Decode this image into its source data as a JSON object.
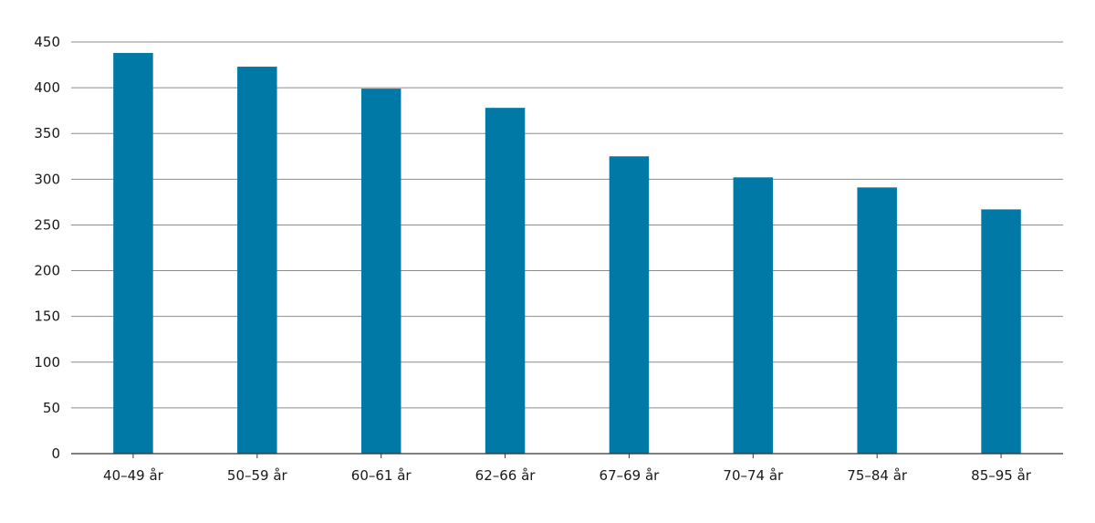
{
  "chart_data": {
    "type": "bar",
    "title": "",
    "xlabel": "",
    "ylabel": "",
    "categories": [
      "40–49 år",
      "50–59 år",
      "60–61 år",
      "62–66 år",
      "67–69 år",
      "70–74 år",
      "75–84 år",
      "85–95 år"
    ],
    "values": [
      438,
      423,
      399,
      378,
      325,
      302,
      291,
      267
    ],
    "ylim": [
      0,
      450
    ],
    "yticks": [
      0,
      50,
      100,
      150,
      200,
      250,
      300,
      350,
      400,
      450
    ],
    "grid": true,
    "legend": "none",
    "colors": {
      "bar": "#0079a6",
      "grid": "#8c8c8c",
      "axis": "#333333"
    }
  }
}
